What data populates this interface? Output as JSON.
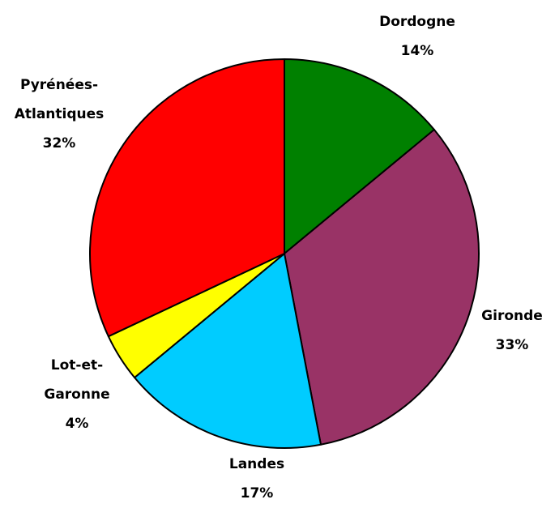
{
  "chart_data": {
    "type": "pie",
    "categories": [
      "Dordogne",
      "Gironde",
      "Landes",
      "Lot-et-Garonne",
      "Pyrénées-Atlantiques"
    ],
    "values": [
      14,
      33,
      17,
      4,
      32
    ],
    "value_labels": [
      "14%",
      "33%",
      "17%",
      "4%",
      "32%"
    ],
    "colors": [
      "#008000",
      "#993366",
      "#00ccff",
      "#ffff00",
      "#ff0000"
    ]
  }
}
